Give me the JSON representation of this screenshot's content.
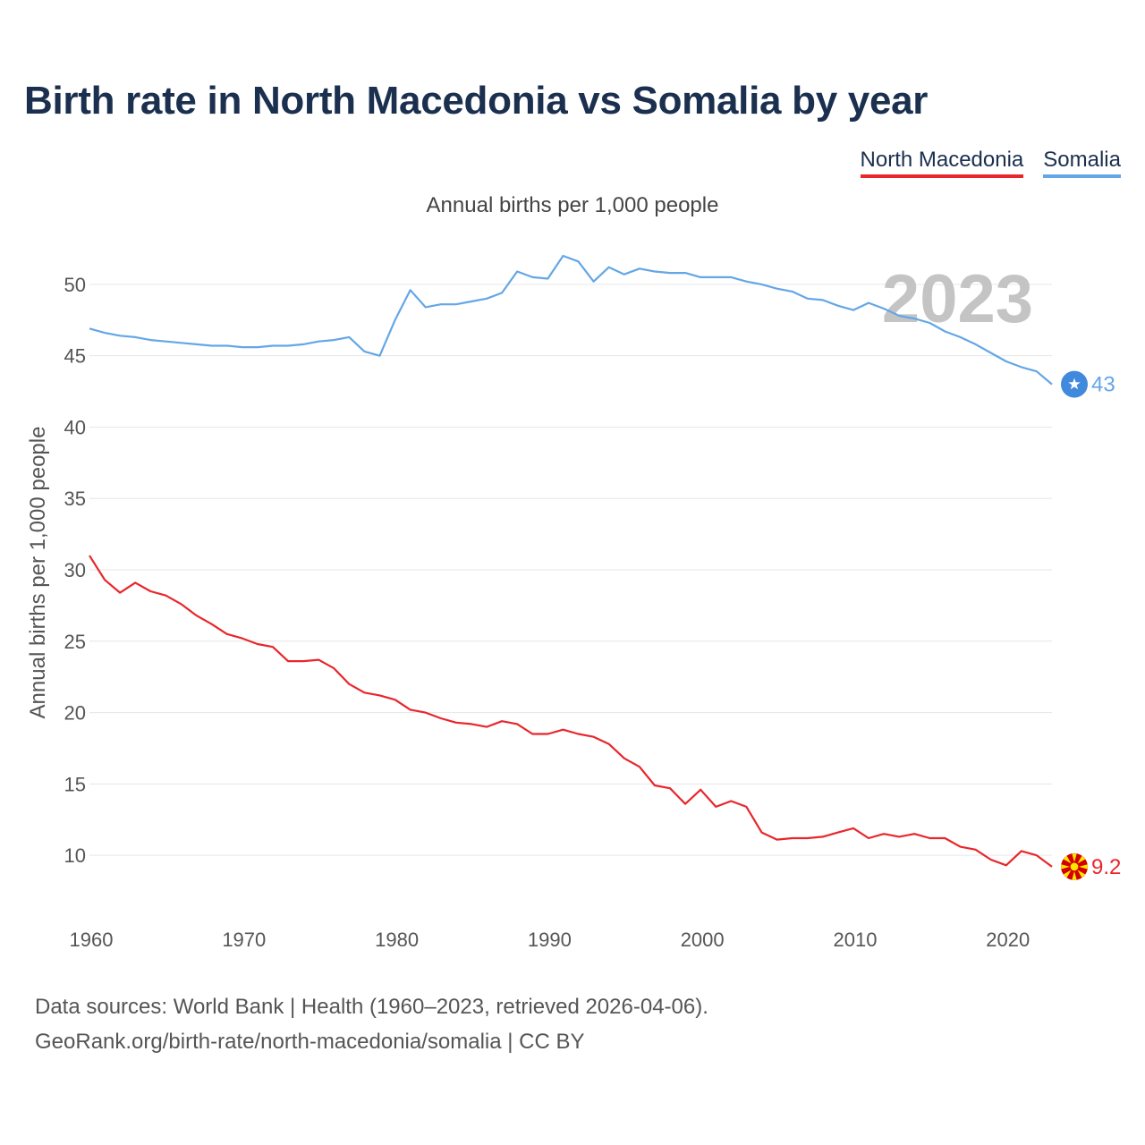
{
  "title": "Birth rate in North Macedonia vs Somalia by year",
  "subtitle": "Annual births per 1,000 people",
  "legend": [
    {
      "label": "North Macedonia",
      "color": "#e8262b"
    },
    {
      "label": "Somalia",
      "color": "#64a6e6"
    }
  ],
  "footer": {
    "line1": "Data sources: World Bank | Health (1960–2023, retrieved 2026-04-06).",
    "line2": "GeoRank.org/birth-rate/north-macedonia/somalia | CC BY"
  },
  "chart_data": {
    "type": "line",
    "title": "Birth rate in North Macedonia vs Somalia by year",
    "ylabel": "Annual births per 1,000 people",
    "xlabel": "",
    "xlim": [
      1960,
      2023
    ],
    "ylim": [
      6,
      53
    ],
    "xticks": [
      1960,
      1970,
      1980,
      1990,
      2000,
      2010,
      2020
    ],
    "yticks": [
      10,
      15,
      20,
      25,
      30,
      35,
      40,
      45,
      50
    ],
    "highlight_year": "2023",
    "grid": true,
    "x": [
      1960,
      1961,
      1962,
      1963,
      1964,
      1965,
      1966,
      1967,
      1968,
      1969,
      1970,
      1971,
      1972,
      1973,
      1974,
      1975,
      1976,
      1977,
      1978,
      1979,
      1980,
      1981,
      1982,
      1983,
      1984,
      1985,
      1986,
      1987,
      1988,
      1989,
      1990,
      1991,
      1992,
      1993,
      1994,
      1995,
      1996,
      1997,
      1998,
      1999,
      2000,
      2001,
      2002,
      2003,
      2004,
      2005,
      2006,
      2007,
      2008,
      2009,
      2010,
      2011,
      2012,
      2013,
      2014,
      2015,
      2016,
      2017,
      2018,
      2019,
      2020,
      2021,
      2022,
      2023
    ],
    "series": [
      {
        "name": "North Macedonia",
        "color": "#e8262b",
        "end_label": "9.2",
        "values": [
          31.0,
          29.3,
          28.4,
          29.1,
          28.5,
          28.2,
          27.6,
          26.8,
          26.2,
          25.5,
          25.2,
          24.8,
          24.6,
          23.6,
          23.6,
          23.7,
          23.1,
          22.0,
          21.4,
          21.2,
          20.9,
          20.2,
          20.0,
          19.6,
          19.3,
          19.2,
          19.0,
          19.4,
          19.2,
          18.5,
          18.5,
          18.8,
          18.5,
          18.3,
          17.8,
          16.8,
          16.2,
          14.9,
          14.7,
          13.6,
          14.6,
          13.4,
          13.8,
          13.4,
          11.6,
          11.1,
          11.2,
          11.2,
          11.3,
          11.6,
          11.9,
          11.2,
          11.5,
          11.3,
          11.5,
          11.2,
          11.2,
          10.6,
          10.4,
          9.7,
          9.3,
          10.3,
          10.0,
          9.2
        ]
      },
      {
        "name": "Somalia",
        "color": "#64a6e6",
        "end_label": "43",
        "values": [
          46.9,
          46.6,
          46.4,
          46.3,
          46.1,
          46.0,
          45.9,
          45.8,
          45.7,
          45.7,
          45.6,
          45.6,
          45.7,
          45.7,
          45.8,
          46.0,
          46.1,
          46.3,
          45.3,
          45.0,
          47.5,
          49.6,
          48.4,
          48.6,
          48.6,
          48.8,
          49.0,
          49.4,
          50.9,
          50.5,
          50.4,
          52.0,
          51.6,
          50.2,
          51.2,
          50.7,
          51.1,
          50.9,
          50.8,
          50.8,
          50.5,
          50.5,
          50.5,
          50.2,
          50.0,
          49.7,
          49.5,
          49.0,
          48.9,
          48.5,
          48.2,
          48.7,
          48.3,
          47.8,
          47.6,
          47.3,
          46.7,
          46.3,
          45.8,
          45.2,
          44.6,
          44.2,
          43.9,
          43.0
        ]
      }
    ]
  }
}
